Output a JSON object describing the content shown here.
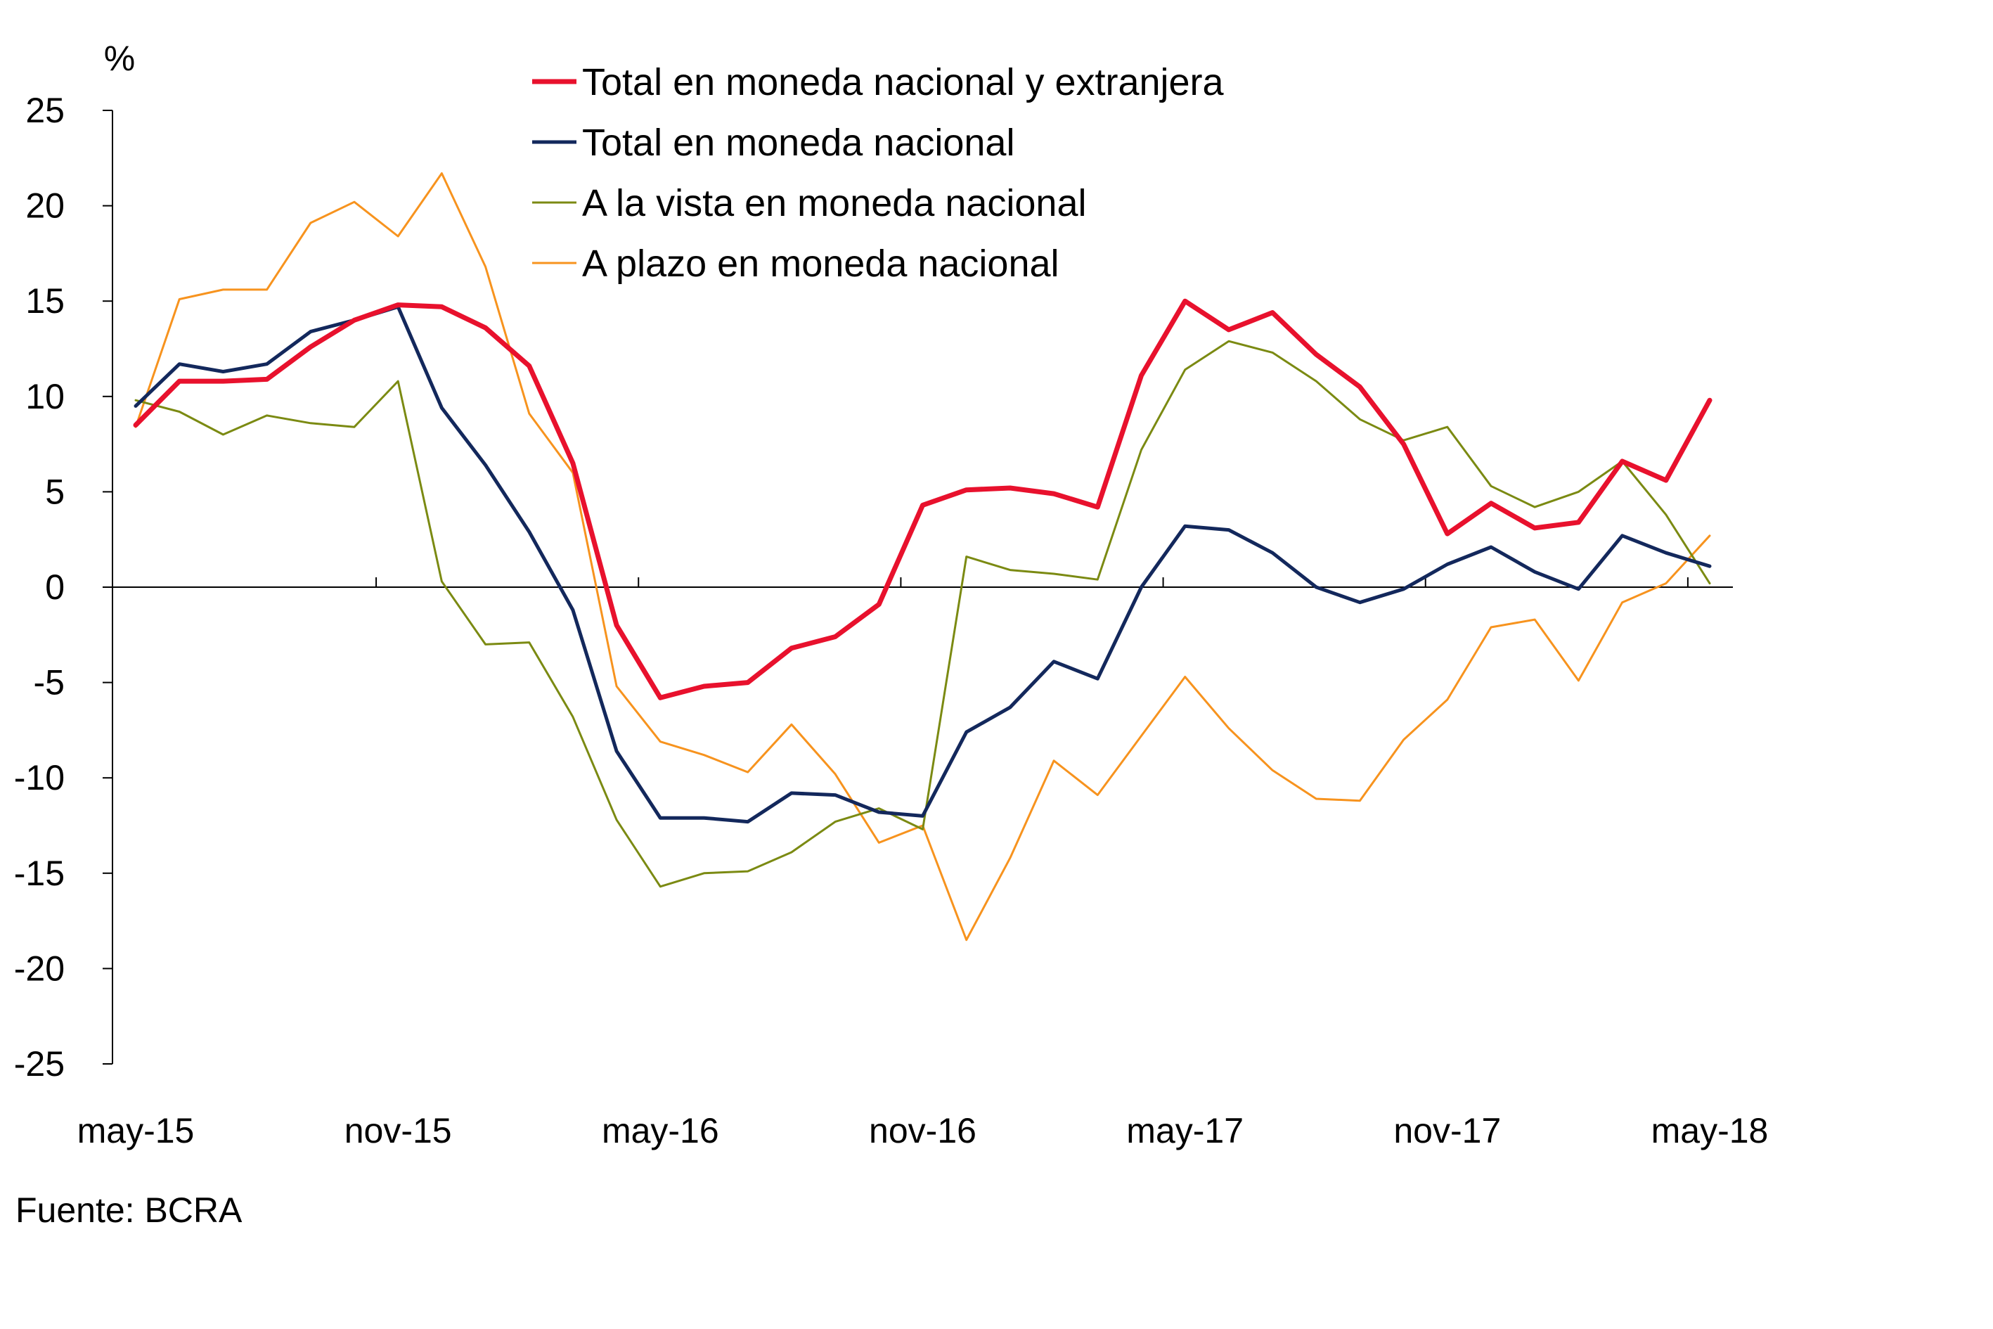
{
  "chart_data": {
    "type": "line",
    "unit_label": "%",
    "source": "Fuente: BCRA",
    "ylim": [
      -25,
      25
    ],
    "yticks": [
      25,
      20,
      15,
      10,
      5,
      0,
      -5,
      -10,
      -15,
      -20,
      -25
    ],
    "ytick_labels": [
      "25",
      "20",
      "15",
      "10",
      "5",
      "0",
      "-5",
      "-10",
      "-15",
      "-20",
      "-25"
    ],
    "x_tick_labels": [
      "may-15",
      "nov-15",
      "may-16",
      "nov-16",
      "may-17",
      "nov-17",
      "may-18"
    ],
    "x_tick_index": [
      0,
      6,
      12,
      18,
      24,
      30,
      36
    ],
    "x": [
      "may-15",
      "jun-15",
      "jul-15",
      "ago-15",
      "sep-15",
      "oct-15",
      "nov-15",
      "dic-15",
      "ene-16",
      "feb-16",
      "mar-16",
      "abr-16",
      "may-16",
      "jun-16",
      "jul-16",
      "ago-16",
      "sep-16",
      "oct-16",
      "nov-16",
      "dic-16",
      "ene-17",
      "feb-17",
      "mar-17",
      "abr-17",
      "may-17",
      "jun-17",
      "jul-17",
      "ago-17",
      "sep-17",
      "oct-17",
      "nov-17",
      "dic-17",
      "ene-18",
      "feb-18",
      "mar-18",
      "abr-18",
      "may-18"
    ],
    "grid": false,
    "legend_position": "top",
    "series": [
      {
        "name": "Total en moneda nacional y extranjera",
        "color": "#e8112d",
        "width": "thick",
        "values": [
          8.5,
          10.8,
          10.8,
          10.9,
          12.6,
          14.0,
          14.8,
          14.7,
          13.6,
          11.6,
          6.5,
          -2.0,
          -5.8,
          -5.2,
          -5.0,
          -3.2,
          -2.6,
          -0.9,
          4.3,
          5.1,
          5.2,
          4.9,
          4.2,
          11.1,
          15.0,
          13.5,
          14.4,
          12.2,
          10.5,
          7.5,
          2.8,
          4.4,
          3.1,
          3.4,
          6.6,
          5.6,
          9.8
        ]
      },
      {
        "name": "Total en moneda nacional",
        "color": "#13285c",
        "width": "medium",
        "values": [
          9.5,
          11.7,
          11.3,
          11.7,
          13.4,
          14.0,
          14.7,
          9.4,
          6.4,
          2.9,
          -1.2,
          -8.6,
          -12.1,
          -12.1,
          -12.3,
          -10.8,
          -10.9,
          -11.8,
          -12.0,
          -7.6,
          -6.3,
          -3.9,
          -4.8,
          0.0,
          3.2,
          3.0,
          1.8,
          0.0,
          -0.8,
          -0.1,
          1.2,
          2.1,
          0.8,
          -0.1,
          2.7,
          1.8,
          1.1
        ]
      },
      {
        "name": "A la vista en moneda nacional",
        "color": "#7b8a12",
        "width": "thin",
        "values": [
          9.8,
          9.2,
          8.0,
          9.0,
          8.6,
          8.4,
          10.8,
          0.3,
          -3.0,
          -2.9,
          -6.8,
          -12.2,
          -15.7,
          -15.0,
          -14.9,
          -13.9,
          -12.3,
          -11.6,
          -12.7,
          1.6,
          0.9,
          0.7,
          0.4,
          7.2,
          11.4,
          12.9,
          12.3,
          10.8,
          8.8,
          7.7,
          8.4,
          5.3,
          4.2,
          5.0,
          6.6,
          3.8,
          0.2
        ]
      },
      {
        "name": "A plazo en moneda nacional",
        "color": "#f7931e",
        "width": "thin",
        "values": [
          8.4,
          15.1,
          15.6,
          15.6,
          19.1,
          20.2,
          18.4,
          21.7,
          16.8,
          9.1,
          6.0,
          -5.2,
          -8.1,
          -8.8,
          -9.7,
          -7.2,
          -9.8,
          -13.4,
          -12.5,
          -18.5,
          -14.2,
          -9.1,
          -10.9,
          -7.8,
          -4.7,
          -7.4,
          -9.6,
          -11.1,
          -11.2,
          -8.0,
          -5.9,
          -2.1,
          -1.7,
          -4.9,
          -0.8,
          0.2,
          2.7
        ]
      }
    ]
  }
}
